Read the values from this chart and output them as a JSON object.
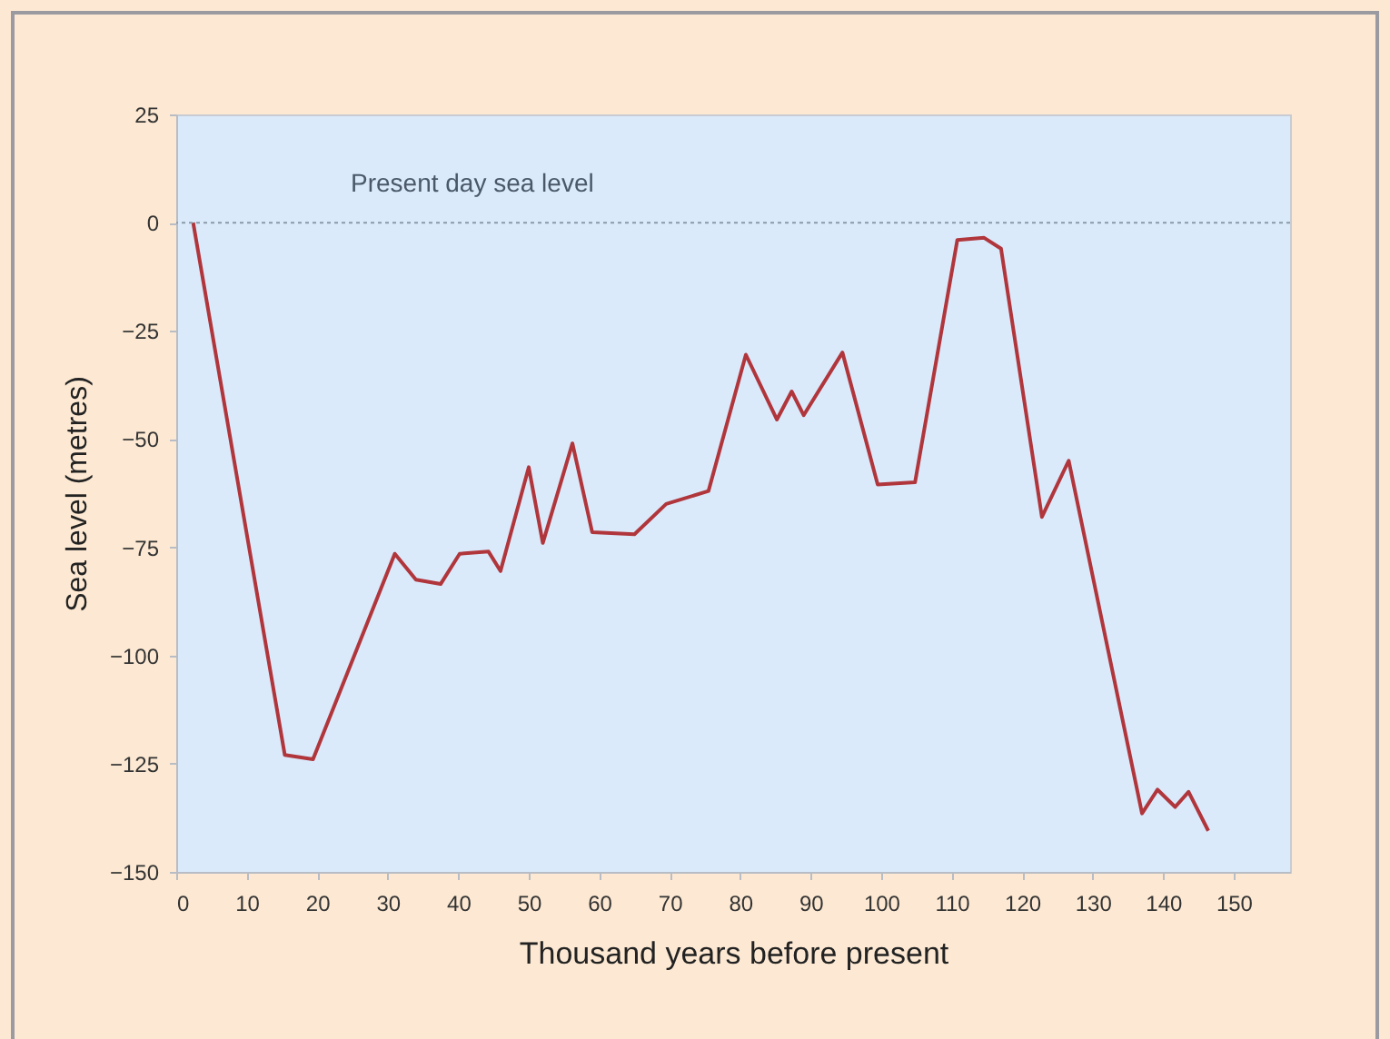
{
  "chart_data": {
    "type": "line",
    "xlabel": "Thousand years before present",
    "ylabel": "Sea level (metres)",
    "x": [
      2.4,
      15.4,
      19.4,
      31,
      34,
      37.5,
      40.2,
      44.3,
      46,
      50,
      52,
      56.2,
      59,
      65,
      69.5,
      75.5,
      80.8,
      85.2,
      87.3,
      89,
      94.5,
      99.5,
      104.8,
      110.8,
      114.6,
      117,
      122.8,
      126.6,
      137,
      139.2,
      141.7,
      143.6,
      146.4
    ],
    "series": [
      {
        "color": "#b0363c",
        "values": [
          0,
          -123,
          -124,
          -76.5,
          -82.5,
          -83.5,
          -76.5,
          -76,
          -80.5,
          -56.5,
          -74,
          -51,
          -71.5,
          -72,
          -65,
          -62,
          -30.5,
          -45.5,
          -39,
          -44.5,
          -30,
          -60.5,
          -60,
          -4,
          -3.5,
          -6,
          -68,
          -55,
          -136.5,
          -131,
          -135,
          -131.5,
          -140.5
        ]
      }
    ],
    "xlim": [
      0,
      158
    ],
    "xticks": [
      0,
      10,
      20,
      30,
      40,
      50,
      60,
      70,
      80,
      90,
      100,
      110,
      120,
      130,
      140,
      150
    ],
    "ylim": [
      -150,
      25
    ],
    "yticks": [
      -150,
      -125,
      -100,
      -75,
      -50,
      -25,
      0,
      25
    ],
    "ref_lines": [
      {
        "axis": "y",
        "value": 0,
        "label": "Present day sea level",
        "color": "#8a9aa8",
        "line_style": "dotted"
      }
    ],
    "grid": false
  }
}
